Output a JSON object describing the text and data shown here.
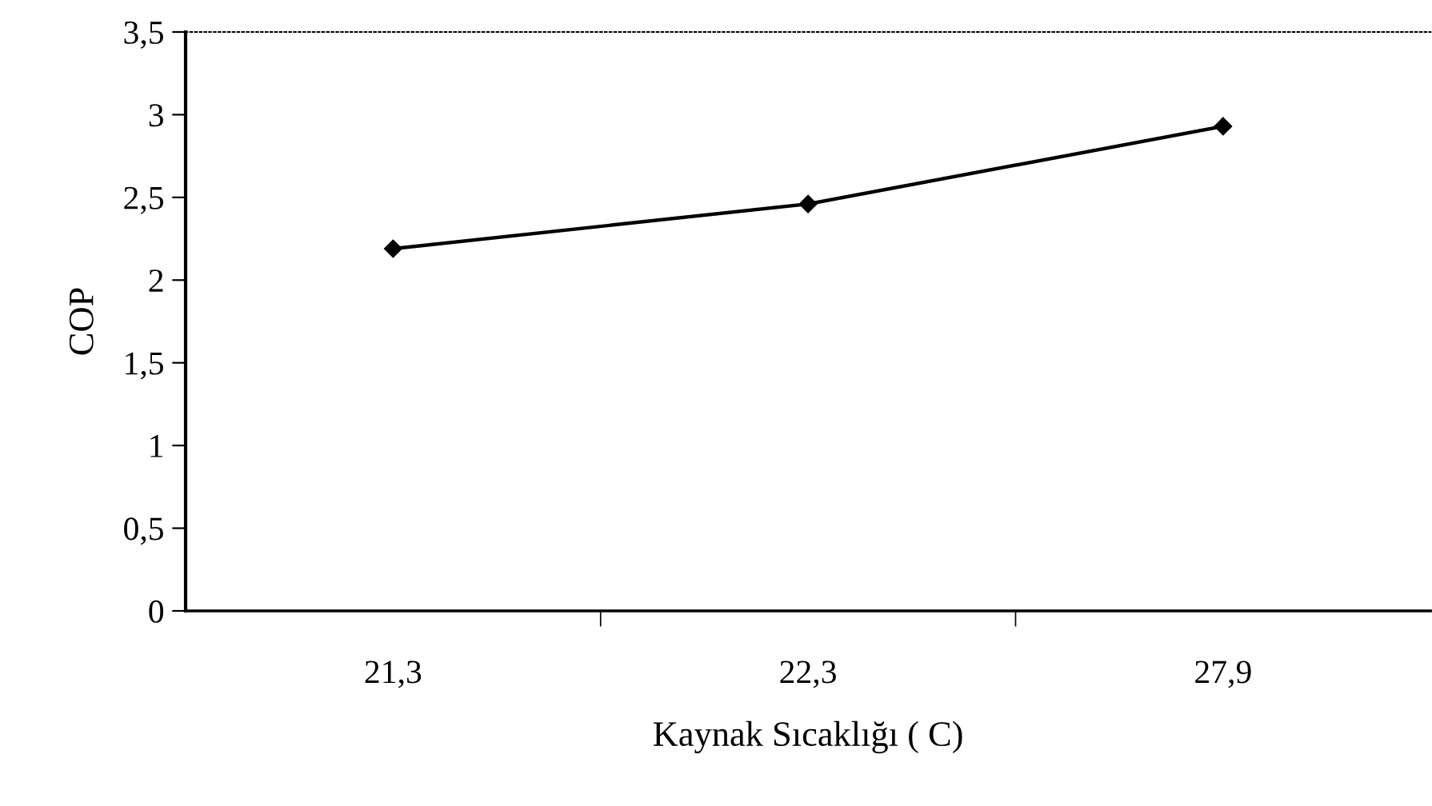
{
  "chart_data": {
    "type": "line",
    "xlabel": "Kaynak Sıcaklığı ( C)",
    "ylabel": "COP",
    "categories": [
      "21,3",
      "22,3",
      "27,9"
    ],
    "series": [
      {
        "color": "#000000",
        "values": [
          2.19,
          2.46,
          2.93
        ]
      }
    ],
    "ylim": [
      0,
      3.5
    ],
    "yticks": [
      0,
      {
        "value": 0.5,
        "label": "0,5"
      },
      1,
      {
        "value": 1.5,
        "label": "1,5"
      },
      2,
      {
        "value": 2.5,
        "label": "2,5"
      },
      3,
      {
        "value": 3.5,
        "label": "3,5"
      }
    ],
    "marker": "diamond",
    "line_style": "solid",
    "grid": false,
    "legend": false
  }
}
